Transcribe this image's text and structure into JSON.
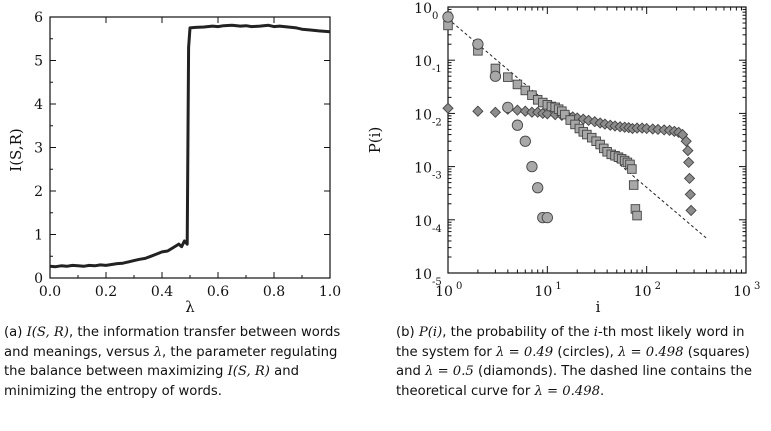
{
  "chart_data": [
    {
      "type": "line",
      "xlabel": "λ",
      "ylabel": "I(S,R)",
      "xlim": [
        0,
        1
      ],
      "ylim": [
        0,
        6
      ],
      "xticks": [
        "0.0",
        "0.2",
        "0.4",
        "0.6",
        "0.8",
        "1.0"
      ],
      "yticks": [
        "0",
        "1",
        "2",
        "3",
        "4",
        "5",
        "6"
      ],
      "series": [
        {
          "x": [
            0.0,
            0.02,
            0.04,
            0.06,
            0.08,
            0.1,
            0.12,
            0.14,
            0.16,
            0.18,
            0.2,
            0.22,
            0.24,
            0.26,
            0.28,
            0.3,
            0.32,
            0.34,
            0.36,
            0.38,
            0.4,
            0.42,
            0.44,
            0.46,
            0.47,
            0.48,
            0.49,
            0.495,
            0.5,
            0.52,
            0.55,
            0.58,
            0.6,
            0.62,
            0.65,
            0.68,
            0.7,
            0.72,
            0.75,
            0.78,
            0.8,
            0.82,
            0.85,
            0.88,
            0.9,
            0.93,
            0.96,
            1.0
          ],
          "y": [
            0.27,
            0.26,
            0.28,
            0.27,
            0.29,
            0.28,
            0.27,
            0.29,
            0.28,
            0.3,
            0.29,
            0.31,
            0.33,
            0.34,
            0.37,
            0.4,
            0.43,
            0.45,
            0.5,
            0.55,
            0.6,
            0.62,
            0.7,
            0.78,
            0.72,
            0.85,
            0.78,
            5.3,
            5.75,
            5.76,
            5.77,
            5.79,
            5.78,
            5.8,
            5.81,
            5.79,
            5.8,
            5.78,
            5.79,
            5.81,
            5.78,
            5.79,
            5.77,
            5.75,
            5.72,
            5.7,
            5.68,
            5.66
          ]
        }
      ],
      "caption": "I(S, R), the information transfer between words and meanings, versus λ, the parameter regulating the balance between maximizing I(S, R) and minimizing the entropy of words."
    },
    {
      "type": "scatter",
      "xlabel": "i",
      "ylabel": "P(i)",
      "x_scale": "log",
      "y_scale": "log",
      "xlim": [
        1,
        1000
      ],
      "ylim": [
        1e-05,
        1
      ],
      "xtick_base": [
        "10",
        "10",
        "10",
        "10"
      ],
      "xtick_exp": [
        "0",
        "1",
        "2",
        "3"
      ],
      "ytick_base": [
        "10",
        "10",
        "10",
        "10",
        "10",
        "10"
      ],
      "ytick_exp": [
        "-5",
        "-4",
        "-3",
        "-2",
        "-1",
        "0"
      ],
      "series": [
        {
          "marker": "circle",
          "x": [
            1,
            2,
            3,
            4,
            5,
            6,
            7,
            8,
            9,
            10
          ],
          "y": [
            0.65,
            0.2,
            0.05,
            0.013,
            0.006,
            0.003,
            0.001,
            0.0004,
            0.00011,
            0.00011
          ]
        },
        {
          "marker": "square",
          "x": [
            1,
            2,
            3,
            4,
            5,
            6,
            7,
            8,
            9,
            10,
            11,
            12,
            13,
            14,
            15,
            17,
            19,
            21,
            23,
            25,
            28,
            31,
            34,
            37,
            40,
            44,
            48,
            52,
            56,
            60,
            64,
            68,
            71,
            74,
            77,
            80
          ],
          "y": [
            0.45,
            0.15,
            0.07,
            0.048,
            0.035,
            0.027,
            0.022,
            0.018,
            0.016,
            0.0145,
            0.0135,
            0.013,
            0.012,
            0.011,
            0.0095,
            0.0075,
            0.0062,
            0.0052,
            0.0045,
            0.004,
            0.0035,
            0.003,
            0.0026,
            0.0022,
            0.0019,
            0.0017,
            0.0016,
            0.0015,
            0.0014,
            0.0013,
            0.0012,
            0.0011,
            0.0009,
            0.00045,
            0.00016,
            0.00012
          ]
        },
        {
          "marker": "diamond",
          "x": [
            1,
            2,
            3,
            4,
            5,
            6,
            7,
            8,
            9,
            10,
            12,
            14,
            16,
            18,
            20,
            23,
            26,
            30,
            34,
            38,
            43,
            48,
            54,
            60,
            66,
            72,
            80,
            90,
            100,
            115,
            130,
            150,
            170,
            190,
            210,
            230,
            250,
            260,
            265,
            270,
            275,
            280
          ],
          "y": [
            0.0125,
            0.011,
            0.0105,
            0.012,
            0.0115,
            0.011,
            0.0105,
            0.0105,
            0.01,
            0.0098,
            0.0095,
            0.0092,
            0.009,
            0.0086,
            0.0082,
            0.0078,
            0.0074,
            0.007,
            0.0066,
            0.0063,
            0.006,
            0.0058,
            0.0056,
            0.0055,
            0.0054,
            0.0052,
            0.0053,
            0.0053,
            0.0052,
            0.0051,
            0.005,
            0.0049,
            0.0048,
            0.0046,
            0.0044,
            0.004,
            0.003,
            0.002,
            0.0012,
            0.0006,
            0.0003,
            0.00015
          ]
        },
        {
          "marker": "dashed-line",
          "x": [
            1,
            400
          ],
          "y": [
            0.6,
            4.5e-05
          ]
        }
      ],
      "caption": "P(i), the probability of the i-th most likely word in the system for λ = 0.49 (circles), λ = 0.498 (squares) and λ = 0.5 (diamonds). The dashed line contains the theoretical curve for λ = 0.498."
    }
  ],
  "captions": {
    "a_label": "(a)",
    "a_math1": "I(S, R)",
    "a_t1": ", the information transfer between words and meanings, versus ",
    "a_lambda": "λ",
    "a_t2": ", the parameter regulating the balance between maximizing ",
    "a_math2": "I(S, R)",
    "a_t3": " and minimizing the entropy of words.",
    "b_label": "(b)",
    "b_math1": "P(i)",
    "b_t1": ", the probability of the ",
    "b_i": "i",
    "b_t2": "-th most likely word in the system for ",
    "b_l1": "λ = 0.49",
    "b_t3": " (circles), ",
    "b_l2": "λ = 0.498",
    "b_t4": " (squares) and ",
    "b_l3": "λ = 0.5",
    "b_t5": " (diamonds). The dashed line contains the theoretical curve for ",
    "b_l4": "λ = 0.498",
    "b_t6": "."
  }
}
